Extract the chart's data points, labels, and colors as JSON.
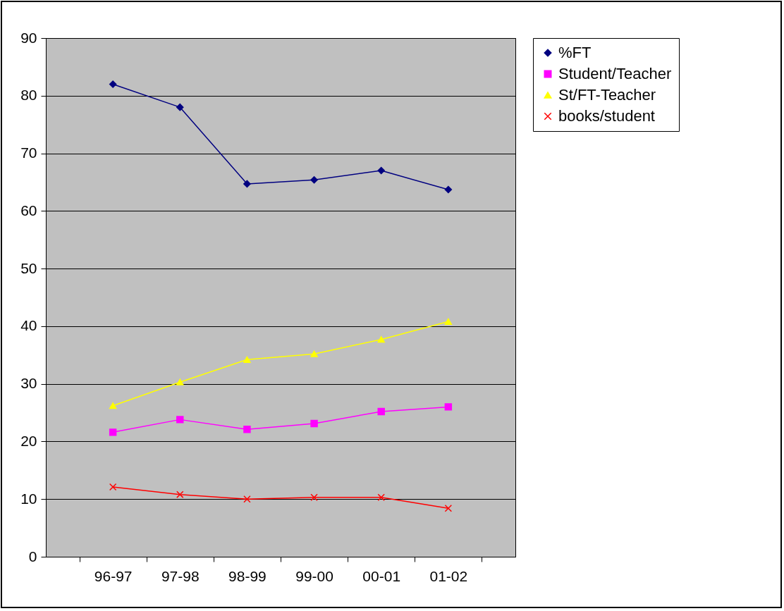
{
  "chart_data": {
    "type": "line",
    "categories": [
      "96-97",
      "97-98",
      "98-99",
      "99-00",
      "00-01",
      "01-02"
    ],
    "series": [
      {
        "name": "%FT",
        "color": "#000080",
        "marker": "diamond",
        "values": [
          82.0,
          78.0,
          64.7,
          65.4,
          67.0,
          63.7
        ]
      },
      {
        "name": "Student/Teacher",
        "color": "#ff00ff",
        "marker": "square",
        "values": [
          21.6,
          23.8,
          22.1,
          23.1,
          25.2,
          26.0
        ]
      },
      {
        "name": "St/FT-Teacher",
        "color": "#ffff00",
        "marker": "triangle",
        "values": [
          26.2,
          30.3,
          34.2,
          35.2,
          37.7,
          40.8
        ]
      },
      {
        "name": "books/student",
        "color": "#ff0000",
        "marker": "cross",
        "values": [
          12.1,
          10.8,
          10.0,
          10.3,
          10.3,
          8.4
        ]
      }
    ],
    "ylim": [
      0,
      90
    ],
    "yticks": [
      0,
      10,
      20,
      30,
      40,
      50,
      60,
      70,
      80,
      90
    ],
    "grid": "y",
    "legend": "right"
  }
}
